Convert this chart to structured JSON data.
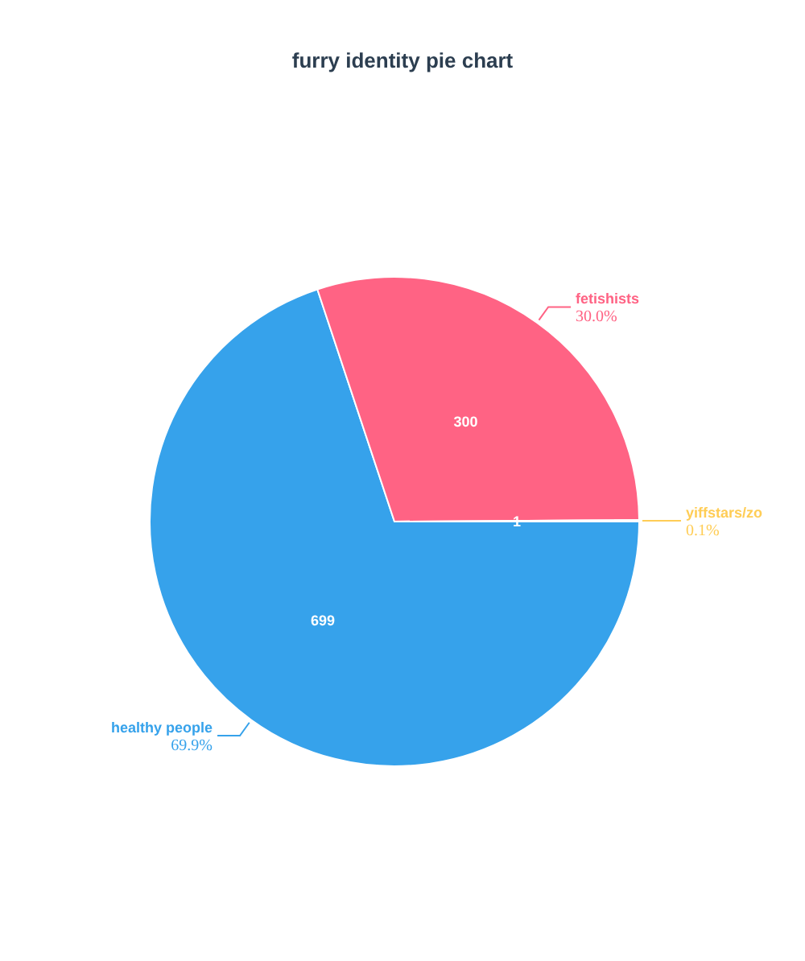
{
  "chart_data": {
    "type": "pie",
    "title": "furry identity pie chart",
    "categories": [
      "healthy people",
      "fetishists",
      "yiffstars/zo"
    ],
    "values": [
      699,
      300,
      1
    ],
    "colors": [
      "#36a2eb",
      "#ff6384",
      "#ffcd56"
    ],
    "value_labels": [
      "699",
      "300",
      "1"
    ],
    "annotations": [
      "69.9%",
      "30.0%",
      "0.1%"
    ]
  }
}
